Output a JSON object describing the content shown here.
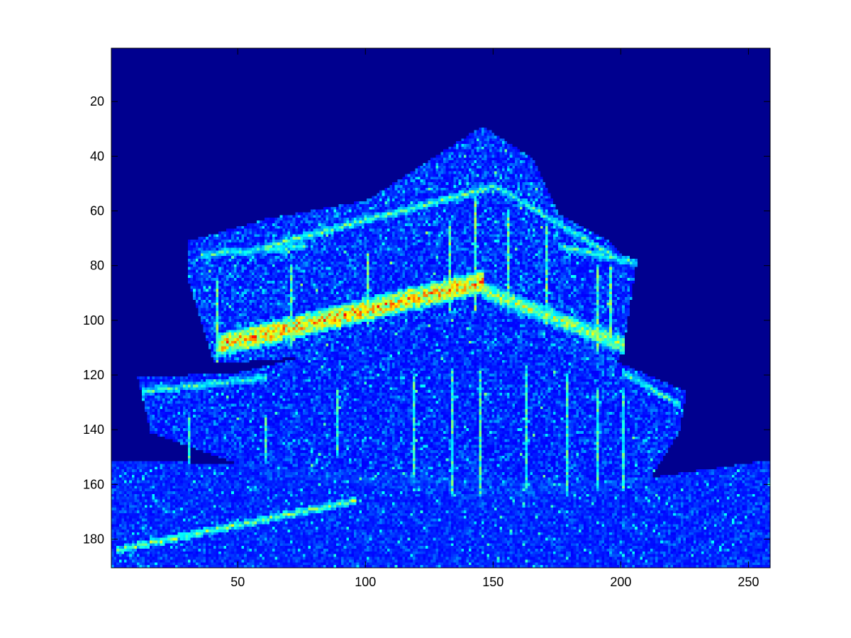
{
  "chart_data": {
    "type": "heatmap",
    "title": "",
    "xlabel": "",
    "ylabel": "",
    "colormap": "jet",
    "xlim": [
      0.5,
      258.5
    ],
    "ylim": [
      0.5,
      190.5
    ],
    "y_reversed": true,
    "grid": false,
    "x_ticks": [
      50,
      100,
      150,
      200,
      250
    ],
    "x_tick_labels": [
      "50",
      "100",
      "150",
      "200",
      "250"
    ],
    "y_ticks": [
      20,
      40,
      60,
      80,
      100,
      120,
      140,
      160,
      180
    ],
    "y_tick_labels": [
      "20",
      "40",
      "60",
      "80",
      "100",
      "120",
      "140",
      "160",
      "180"
    ],
    "grid_size": {
      "cols": 258,
      "rows": 190
    },
    "background_color": "#00008f",
    "axes_color": "#000000",
    "description_of_content": "noisy edge-magnitude map"
  }
}
